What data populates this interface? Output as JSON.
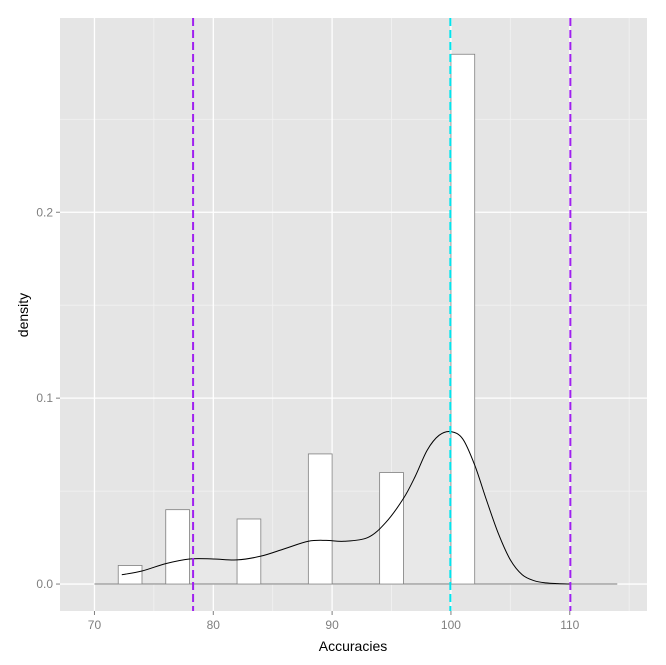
{
  "chart_data": {
    "type": "bar",
    "title": "",
    "xlabel": "Accuracies",
    "ylabel": "density",
    "xlim": [
      67.1,
      116.5
    ],
    "ylim": [
      -0.0145,
      0.3045
    ],
    "x_ticks": [
      70,
      80,
      90,
      100,
      110
    ],
    "x_tick_labels": [
      "70",
      "80",
      "90",
      "100",
      "110"
    ],
    "y_ticks": [
      0.0,
      0.1,
      0.2
    ],
    "y_tick_labels": [
      "0.0",
      "0.1",
      "0.2"
    ],
    "grid": true,
    "background_color": "#e5e5e5",
    "grid_color": "#ffffff",
    "histogram": {
      "bin_width": 2.0,
      "bar_fill": "#ffffff",
      "bar_stroke": "#7f7f7f",
      "bins": [
        {
          "x_start": 72.0,
          "x_end": 74.0,
          "density": 0.01
        },
        {
          "x_start": 76.0,
          "x_end": 78.0,
          "density": 0.04
        },
        {
          "x_start": 82.0,
          "x_end": 84.0,
          "density": 0.035
        },
        {
          "x_start": 88.0,
          "x_end": 90.0,
          "density": 0.07
        },
        {
          "x_start": 94.0,
          "x_end": 96.0,
          "density": 0.06
        },
        {
          "x_start": 100.0,
          "x_end": 102.0,
          "density": 0.285
        }
      ]
    },
    "density_curve": {
      "stroke": "#000000",
      "fill": "#e8e8e8",
      "x": [
        72.3,
        74,
        76,
        78,
        80,
        82,
        84,
        86,
        88,
        89.5,
        91,
        93,
        94.5,
        96,
        97,
        98,
        99,
        100,
        101,
        102,
        103,
        104,
        105,
        106,
        107,
        108,
        109,
        110
      ],
      "y": [
        0.005,
        0.007,
        0.011,
        0.0135,
        0.0135,
        0.013,
        0.015,
        0.019,
        0.023,
        0.0235,
        0.023,
        0.025,
        0.033,
        0.046,
        0.058,
        0.072,
        0.08,
        0.082,
        0.078,
        0.064,
        0.045,
        0.027,
        0.013,
        0.005,
        0.0018,
        0.0006,
        0.0002,
        0.0
      ]
    },
    "baseline": {
      "x_start": 70.0,
      "x_end": 114.0,
      "y": 0.0,
      "stroke": "#7f7f7f"
    },
    "vertical_lines": [
      {
        "x": 78.3,
        "color": "#a020f0",
        "style": "dashed"
      },
      {
        "x": 99.95,
        "color": "#00e5ee",
        "style": "dashed"
      },
      {
        "x": 110.05,
        "color": "#a020f0",
        "style": "dashed"
      }
    ]
  }
}
